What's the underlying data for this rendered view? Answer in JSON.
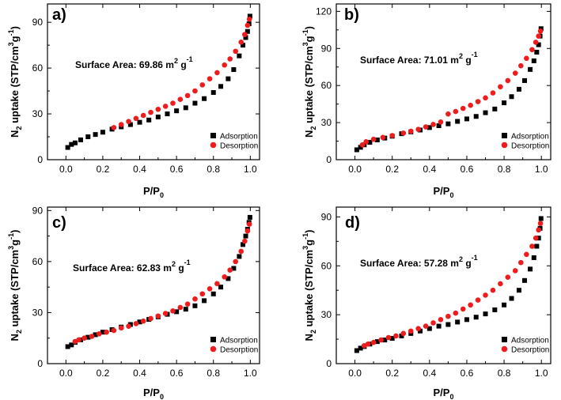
{
  "chart_data": [
    {
      "panel": "a)",
      "type": "scatter",
      "annotation": {
        "prefix": "Surface Area: 69.86 m",
        "sup1": "2",
        "mid": " g",
        "sup2": "-1"
      },
      "xlabel": {
        "main": "P/P",
        "sub": "0"
      },
      "ylabel": {
        "p1": "N",
        "s1": "2",
        "p2": " uptake (STP/cm",
        "s2": "3",
        "p3": "g",
        "s3": "-1",
        "p4": ")"
      },
      "xlim": [
        -0.1,
        1.05
      ],
      "ylim": [
        0,
        102
      ],
      "xticks": [
        "0.0",
        "0.2",
        "0.4",
        "0.6",
        "0.8",
        "1.0"
      ],
      "yticks": [
        "0",
        "30",
        "60",
        "90"
      ],
      "legend": "bottom-right",
      "series": [
        {
          "name": "Adsorption",
          "marker": "square",
          "color": "#000000",
          "x": [
            0.01,
            0.03,
            0.05,
            0.08,
            0.12,
            0.16,
            0.2,
            0.25,
            0.3,
            0.35,
            0.4,
            0.45,
            0.5,
            0.55,
            0.6,
            0.65,
            0.7,
            0.75,
            0.8,
            0.84,
            0.88,
            0.91,
            0.94,
            0.96,
            0.975,
            0.985,
            0.993,
            0.998
          ],
          "y": [
            8,
            10,
            11,
            13,
            15,
            16.5,
            18,
            20,
            21.5,
            23,
            24.5,
            26,
            28,
            30,
            32,
            34,
            37,
            40,
            44,
            48,
            53,
            59,
            68,
            75,
            80,
            84,
            89,
            94
          ]
        },
        {
          "name": "Desorption",
          "marker": "circle",
          "color": "#ee1c1c",
          "x": [
            0.995,
            0.985,
            0.97,
            0.95,
            0.92,
            0.89,
            0.86,
            0.82,
            0.78,
            0.74,
            0.7,
            0.66,
            0.62,
            0.58,
            0.54,
            0.5,
            0.46,
            0.42,
            0.38,
            0.34,
            0.3,
            0.26
          ],
          "y": [
            92,
            88,
            82,
            77,
            71,
            66,
            62,
            57,
            53,
            49,
            45,
            42,
            39.5,
            37,
            35,
            33,
            31,
            29,
            27,
            25,
            23,
            21
          ]
        }
      ]
    },
    {
      "panel": "b)",
      "type": "scatter",
      "annotation": {
        "prefix": "Surface Area: 71.01 m",
        "sup1": "2",
        "mid": " g",
        "sup2": "-1"
      },
      "xlabel": {
        "main": "P/P",
        "sub": "0"
      },
      "ylabel": {
        "p1": "N",
        "s1": "2",
        "p2": " uptake (STP/cm",
        "s2": "3",
        "p3": "g",
        "s3": "-1",
        "p4": ")"
      },
      "xlim": [
        -0.1,
        1.05
      ],
      "ylim": [
        0,
        126
      ],
      "xticks": [
        "0.0",
        "0.2",
        "0.4",
        "0.6",
        "0.8",
        "1.0"
      ],
      "yticks": [
        "0",
        "30",
        "60",
        "90",
        "120"
      ],
      "legend": "bottom-right",
      "series": [
        {
          "name": "Adsorption",
          "marker": "square",
          "color": "#000000",
          "x": [
            0.01,
            0.03,
            0.05,
            0.08,
            0.12,
            0.16,
            0.2,
            0.25,
            0.3,
            0.35,
            0.4,
            0.45,
            0.5,
            0.55,
            0.6,
            0.65,
            0.7,
            0.75,
            0.8,
            0.84,
            0.88,
            0.91,
            0.94,
            0.96,
            0.975,
            0.985,
            0.993,
            0.998
          ],
          "y": [
            8,
            10,
            12,
            14,
            16,
            17.5,
            19,
            21,
            22.5,
            24,
            26,
            27.5,
            29,
            31,
            33,
            35,
            38,
            41,
            46,
            51,
            57,
            64,
            73,
            80,
            87,
            93,
            100,
            106
          ]
        },
        {
          "name": "Desorption",
          "marker": "circle",
          "color": "#ee1c1c",
          "x": [
            0.995,
            0.985,
            0.97,
            0.95,
            0.92,
            0.89,
            0.86,
            0.82,
            0.78,
            0.74,
            0.7,
            0.66,
            0.62,
            0.58,
            0.54,
            0.5,
            0.46,
            0.42,
            0.38,
            0.34,
            0.3,
            0.26,
            0.2,
            0.15,
            0.1,
            0.06,
            0.04
          ],
          "y": [
            104,
            100,
            95,
            89,
            82,
            76,
            70,
            64,
            59,
            54,
            50,
            47,
            44,
            41.5,
            39,
            37,
            30.5,
            28.5,
            26.5,
            24.5,
            23,
            21.5,
            19.5,
            18,
            16.5,
            14.5,
            12
          ]
        }
      ]
    },
    {
      "panel": "c)",
      "type": "scatter",
      "annotation": {
        "prefix": "Surface Area: 62.83 m",
        "sup1": "2",
        "mid": " g",
        "sup2": "-1"
      },
      "xlabel": {
        "main": "P/P",
        "sub": "0"
      },
      "ylabel": {
        "p1": "N",
        "s1": "2",
        "p2": " uptake (STP/cm",
        "s2": "3",
        "p3": "g",
        "s3": "-1",
        "p4": ")"
      },
      "xlim": [
        -0.1,
        1.05
      ],
      "ylim": [
        0,
        92
      ],
      "xticks": [
        "0.0",
        "0.2",
        "0.4",
        "0.6",
        "0.8",
        "1.0"
      ],
      "yticks": [
        "0",
        "30",
        "60",
        "90"
      ],
      "legend": "bottom-right",
      "series": [
        {
          "name": "Adsorption",
          "marker": "square",
          "color": "#000000",
          "x": [
            0.01,
            0.03,
            0.05,
            0.08,
            0.12,
            0.16,
            0.2,
            0.25,
            0.3,
            0.35,
            0.4,
            0.45,
            0.5,
            0.55,
            0.6,
            0.65,
            0.7,
            0.75,
            0.8,
            0.84,
            0.88,
            0.91,
            0.94,
            0.96,
            0.975,
            0.985,
            0.993,
            0.998
          ],
          "y": [
            10,
            11,
            12.5,
            14,
            15.5,
            17,
            18.5,
            20,
            21.5,
            23,
            24.5,
            26,
            27.5,
            29,
            30.5,
            32,
            34,
            37,
            41,
            45,
            50,
            56,
            63,
            70,
            75,
            79,
            83,
            86
          ]
        },
        {
          "name": "Desorption",
          "marker": "circle",
          "color": "#ee1c1c",
          "x": [
            0.995,
            0.985,
            0.97,
            0.95,
            0.92,
            0.89,
            0.86,
            0.82,
            0.78,
            0.74,
            0.7,
            0.66,
            0.62,
            0.58,
            0.54,
            0.5,
            0.46,
            0.42,
            0.38,
            0.34,
            0.3,
            0.26,
            0.22,
            0.18,
            0.14,
            0.1,
            0.07,
            0.05
          ],
          "y": [
            82,
            78,
            72,
            66,
            60,
            55,
            51,
            47,
            44,
            41,
            38,
            35,
            33,
            31,
            29.5,
            28,
            26.5,
            25,
            23.5,
            22,
            21,
            19.5,
            18.5,
            17.5,
            16,
            15,
            14,
            13
          ]
        }
      ]
    },
    {
      "panel": "d)",
      "type": "scatter",
      "annotation": {
        "prefix": "Surface Area: 57.28 m",
        "sup1": "2",
        "mid": " g",
        "sup2": "-1"
      },
      "xlabel": {
        "main": "P/P",
        "sub": "0"
      },
      "ylabel": {
        "p1": "N",
        "s1": "2",
        "p2": " uptake (STP/cm",
        "s2": "3",
        "p3": "g",
        "s3": "-1",
        "p4": ")"
      },
      "xlim": [
        -0.1,
        1.05
      ],
      "ylim": [
        0,
        96
      ],
      "xticks": [
        "0.0",
        "0.2",
        "0.4",
        "0.6",
        "0.8",
        "1.0"
      ],
      "yticks": [
        "0",
        "30",
        "60",
        "90"
      ],
      "legend": "bottom-right",
      "series": [
        {
          "name": "Adsorption",
          "marker": "square",
          "color": "#000000",
          "x": [
            0.01,
            0.03,
            0.05,
            0.08,
            0.12,
            0.16,
            0.2,
            0.25,
            0.3,
            0.35,
            0.4,
            0.45,
            0.5,
            0.55,
            0.6,
            0.65,
            0.7,
            0.75,
            0.8,
            0.84,
            0.88,
            0.91,
            0.94,
            0.96,
            0.975,
            0.985,
            0.993,
            0.998
          ],
          "y": [
            8,
            9.5,
            10.5,
            12,
            13.5,
            14.5,
            15.5,
            17,
            18.5,
            20,
            21.5,
            23,
            24,
            25.5,
            27,
            28.5,
            30.5,
            33,
            36,
            40,
            45,
            51,
            58,
            65,
            72,
            77,
            83,
            89
          ]
        },
        {
          "name": "Desorption",
          "marker": "circle",
          "color": "#ee1c1c",
          "x": [
            0.995,
            0.985,
            0.97,
            0.95,
            0.92,
            0.89,
            0.86,
            0.82,
            0.78,
            0.74,
            0.7,
            0.66,
            0.62,
            0.58,
            0.54,
            0.5,
            0.46,
            0.42,
            0.38,
            0.34,
            0.3,
            0.26,
            0.22,
            0.18,
            0.14,
            0.1,
            0.07,
            0.05
          ],
          "y": [
            86,
            82,
            77,
            72,
            67,
            62,
            57,
            53,
            49,
            45,
            42,
            39,
            36,
            33.5,
            31,
            29,
            27,
            25,
            23,
            21.5,
            20,
            18.5,
            17,
            16,
            14.5,
            13,
            12,
            11
          ]
        }
      ]
    }
  ]
}
